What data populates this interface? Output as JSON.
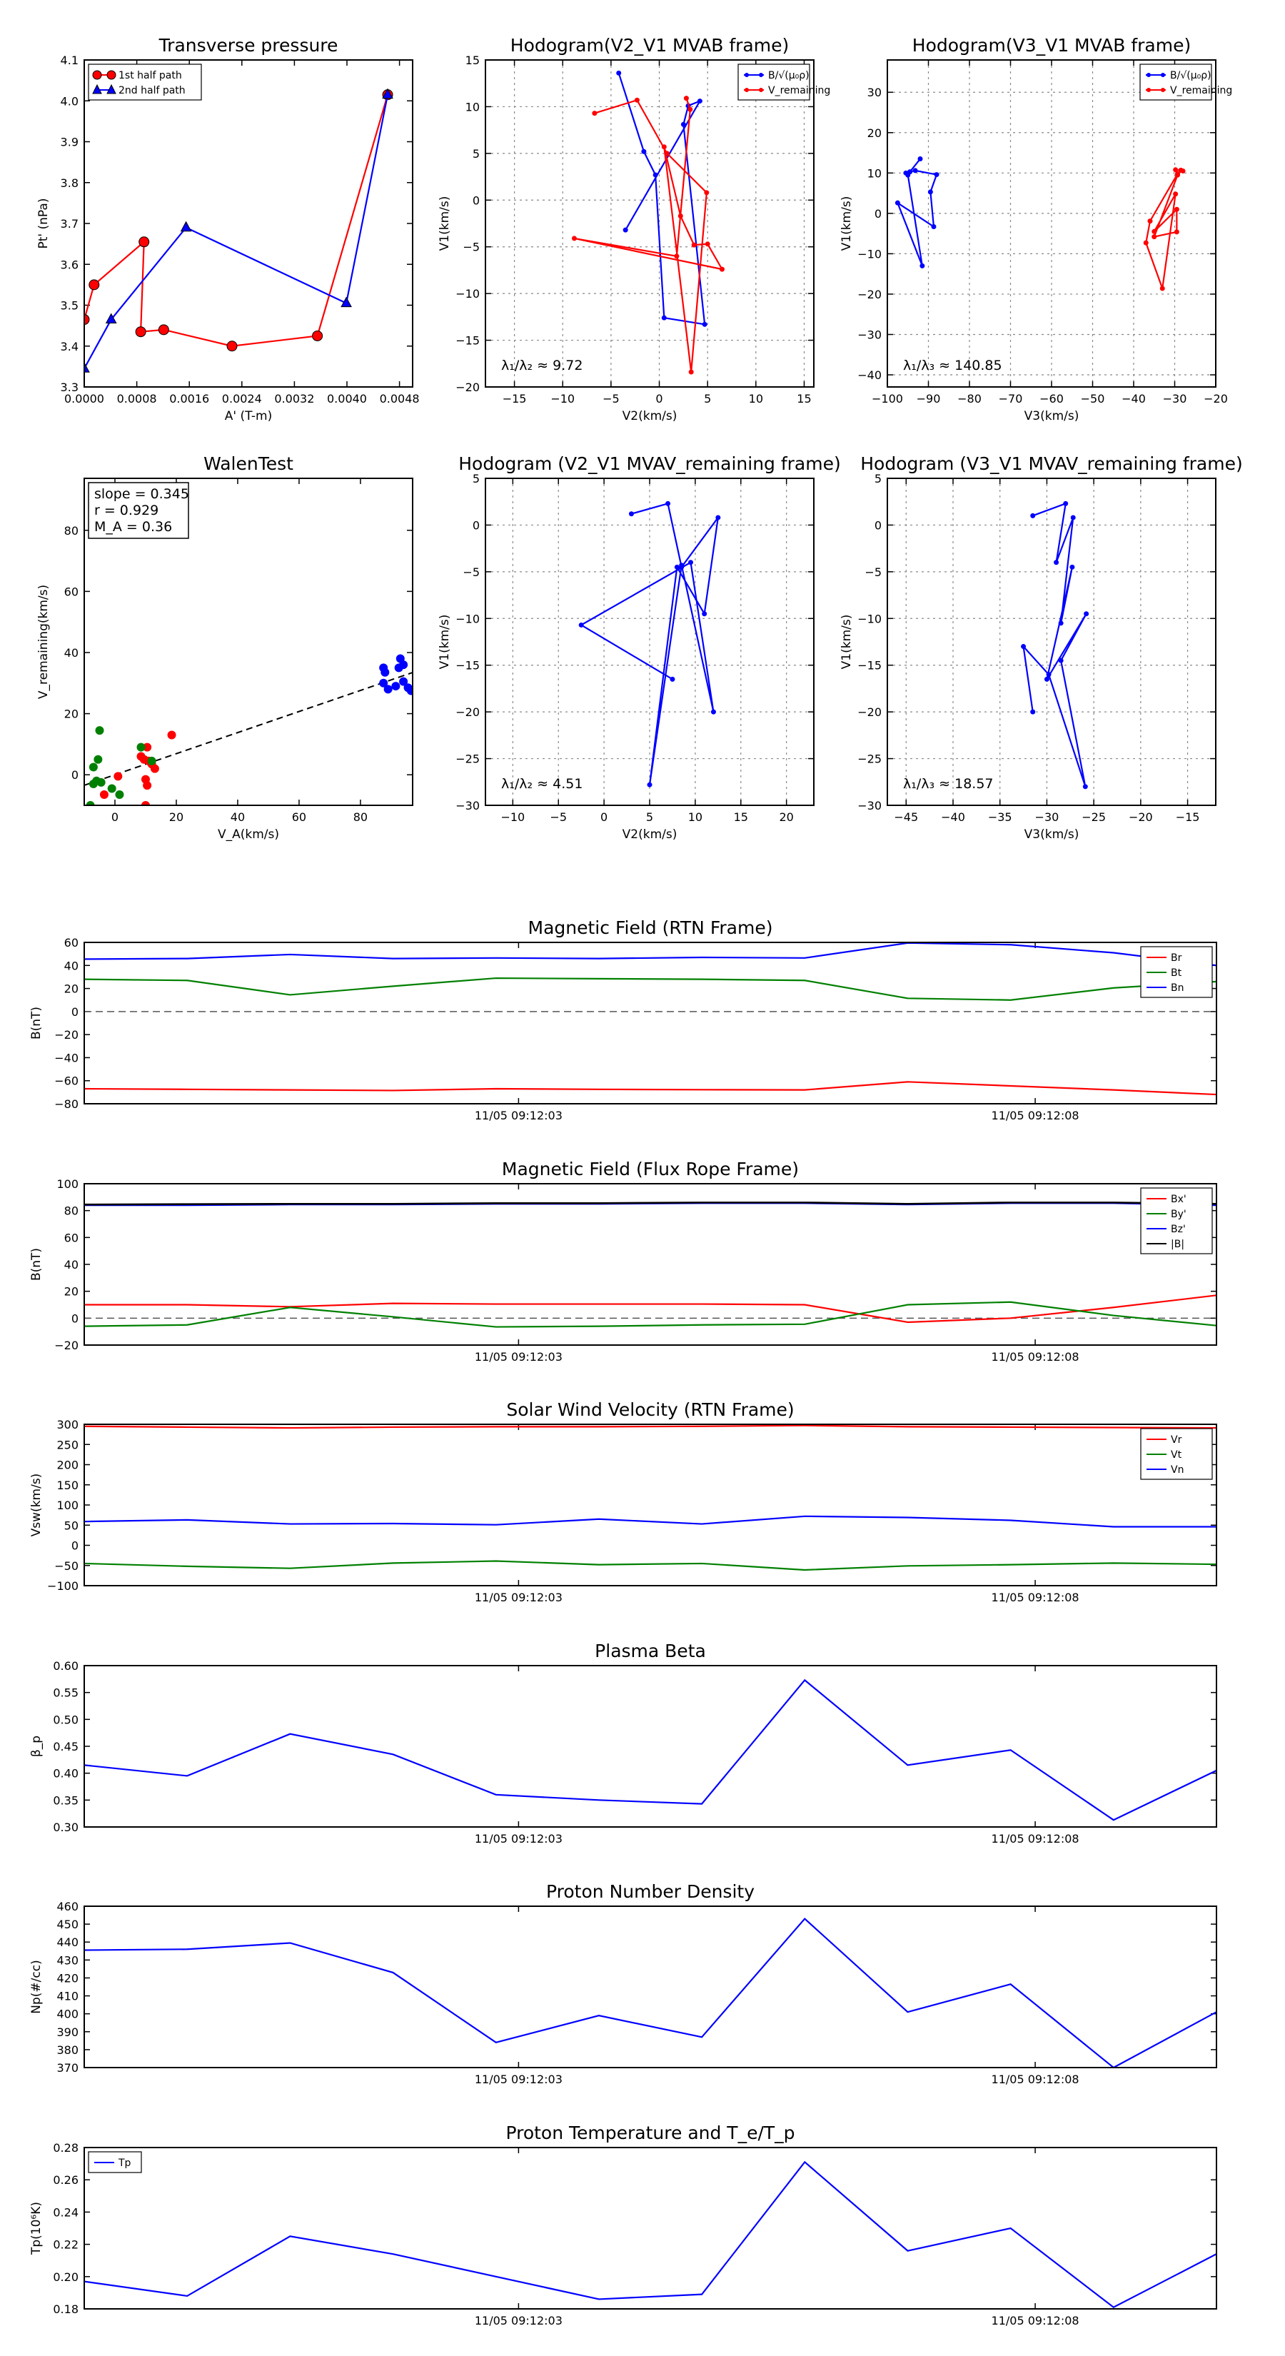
{
  "colors": {
    "red": "#ff0000",
    "green": "#008000",
    "blue": "#0000ff",
    "black": "#000000",
    "dash": "#555555"
  },
  "chart_data": [
    {
      "id": "tp",
      "type": "line",
      "title": "Transverse pressure",
      "xlabel": "A' (T-m)",
      "ylabel": "Pt' (nPa)",
      "xlim": [
        0,
        0.005
      ],
      "ylim": [
        3.3,
        4.1
      ],
      "xticks": [
        0,
        0.0008,
        0.0016,
        0.0024,
        0.0032,
        0.004,
        0.0048
      ],
      "xtick_labels": [
        "0.0000",
        "0.0008",
        "0.0016",
        "0.0024",
        "0.0032",
        "0.0040",
        "0.0048"
      ],
      "yticks": [
        3.3,
        3.4,
        3.5,
        3.6,
        3.7,
        3.8,
        3.9,
        4.0,
        4.1
      ],
      "ytick_labels": [
        "3.3",
        "3.4",
        "3.5",
        "3.6",
        "3.7",
        "3.8",
        "3.9",
        "4.0",
        "4.1"
      ],
      "grid": false,
      "legend": {
        "position": "top-left",
        "entries": [
          "1st half path",
          "2nd half path"
        ]
      },
      "series": [
        {
          "name": "1st half path",
          "color": "red",
          "marker": "circle",
          "x": [
            0.00462,
            0.00355,
            0.00225,
            0.00121,
            0.00086,
            0.00091,
            0.00015,
            0.0
          ],
          "y": [
            4.015,
            3.425,
            3.4,
            3.44,
            3.435,
            3.655,
            3.55,
            3.465
          ]
        },
        {
          "name": "2nd half path",
          "color": "blue",
          "marker": "triangle",
          "x": [
            0.0,
            0.00041,
            0.00155,
            0.00399,
            0.00462
          ],
          "y": [
            3.345,
            3.465,
            3.69,
            3.505,
            4.015
          ]
        }
      ]
    },
    {
      "id": "h1",
      "type": "line",
      "title": "Hodogram(V2_V1 MVAB frame)",
      "xlabel": "V2(km/s)",
      "ylabel": "V1(km/s)",
      "xlim": [
        -18,
        16
      ],
      "ylim": [
        -20,
        15
      ],
      "xticks": [
        -15,
        -10,
        -5,
        0,
        5,
        10,
        15
      ],
      "xtick_labels": [
        "−15",
        "−10",
        "−5",
        "0",
        "5",
        "10",
        "15"
      ],
      "yticks": [
        -20,
        -15,
        -10,
        -5,
        0,
        5,
        10,
        15
      ],
      "ytick_labels": [
        "−20",
        "−15",
        "−10",
        "−5",
        "0",
        "5",
        "10",
        "15"
      ],
      "grid": true,
      "annotation": "λ₁/λ₂ ≈ 9.72",
      "legend": {
        "position": "top-right",
        "entries": [
          "B/√(μ₀ρ)",
          "V_remaining"
        ]
      },
      "series": [
        {
          "name": "B/√(μ₀ρ)",
          "color": "blue",
          "marker": "dot",
          "x": [
            -4.2,
            -1.6,
            -0.4,
            0.5,
            4.7,
            2.5,
            3.0,
            4.2,
            -3.5
          ],
          "y": [
            13.6,
            5.2,
            2.7,
            -12.6,
            -13.3,
            8.1,
            10.1,
            10.6,
            -3.2
          ]
        },
        {
          "name": "V_remaining",
          "color": "red",
          "marker": "dot",
          "x": [
            -6.7,
            -2.3,
            0.8,
            4.9,
            3.3,
            0.5,
            2.2,
            3.6,
            5.0,
            6.5,
            -8.8,
            1.8,
            3.2,
            2.8
          ],
          "y": [
            9.3,
            10.7,
            5.0,
            0.8,
            -18.4,
            5.7,
            -1.7,
            -4.8,
            -4.7,
            -7.4,
            -4.1,
            -6.0,
            9.7,
            10.9
          ]
        }
      ]
    },
    {
      "id": "h2",
      "type": "line",
      "title": "Hodogram(V3_V1 MVAB frame)",
      "xlabel": "V3(km/s)",
      "ylabel": "V1(km/s)",
      "xlim": [
        -100,
        -20
      ],
      "ylim": [
        -43,
        38
      ],
      "xticks": [
        -100,
        -90,
        -80,
        -70,
        -60,
        -50,
        -40,
        -30,
        -20
      ],
      "xtick_labels": [
        "−100",
        "−90",
        "−80",
        "−70",
        "−60",
        "−50",
        "−40",
        "−30",
        "−20"
      ],
      "yticks": [
        -40,
        -30,
        -20,
        -10,
        0,
        10,
        20,
        30
      ],
      "ytick_labels": [
        "−40",
        "−30",
        "−20",
        "−10",
        "0",
        "10",
        "20",
        "30"
      ],
      "grid": true,
      "annotation": "λ₁/λ₃ ≈ 140.85",
      "legend": {
        "position": "top-right",
        "entries": [
          "B/√(μ₀ρ)",
          "V_remaining"
        ]
      },
      "series": [
        {
          "name": "B/√(μ₀ρ)",
          "color": "blue",
          "marker": "dot",
          "x": [
            -92.0,
            -94.5,
            -93.2,
            -88.0,
            -89.5,
            -88.7,
            -97.5,
            -91.5,
            -95.0,
            -95.5
          ],
          "y": [
            13.5,
            10.3,
            10.6,
            9.6,
            5.3,
            -3.3,
            2.6,
            -13.0,
            9.5,
            10.0
          ]
        },
        {
          "name": "V_remaining",
          "color": "red",
          "marker": "dot",
          "x": [
            -28.0,
            -29.8,
            -29.3,
            -35.0,
            -29.5,
            -29.5,
            -35.0,
            -29.8,
            -33.0,
            -37.0,
            -36.0,
            -29.3,
            -28.5
          ],
          "y": [
            10.5,
            10.8,
            9.5,
            -5.8,
            -4.6,
            1.0,
            -4.5,
            4.8,
            -18.6,
            -7.3,
            -1.9,
            9.8,
            10.7
          ]
        }
      ]
    },
    {
      "id": "walen",
      "type": "scatter",
      "title": "WalenTest",
      "xlabel": "V_A(km/s)",
      "ylabel": "V_remaining(km/s)",
      "xlim": [
        -10,
        97
      ],
      "ylim": [
        -10,
        97
      ],
      "xticks": [
        0,
        20,
        40,
        60,
        80
      ],
      "xtick_labels": [
        "0",
        "20",
        "40",
        "60",
        "80"
      ],
      "yticks": [
        0,
        20,
        40,
        60,
        80
      ],
      "ytick_labels": [
        "0",
        "20",
        "40",
        "60",
        "80"
      ],
      "grid": false,
      "annotation_lines": [
        "slope = 0.345",
        "r = 0.929",
        "M_A = 0.36"
      ],
      "fit": {
        "slope": 0.345,
        "x_range": [
          -10,
          97
        ]
      },
      "series": [
        {
          "name": "red",
          "color": "red",
          "x": [
            18.5,
            10.5,
            8.5,
            11.0,
            9.5,
            12.0,
            10.0,
            13.0,
            10.5,
            1.0,
            -3.5,
            10.0
          ],
          "y": [
            13.0,
            9.0,
            6.0,
            4.5,
            5.0,
            3.5,
            -1.5,
            2.0,
            -3.5,
            -0.5,
            -6.5,
            -10.0
          ]
        },
        {
          "name": "green",
          "color": "green",
          "x": [
            -5.0,
            -5.5,
            -4.5,
            8.5,
            -7.0,
            -7.0,
            -6.0,
            -1.0,
            1.5,
            -8.0,
            12.0
          ],
          "y": [
            14.5,
            5.0,
            -2.5,
            9.0,
            2.5,
            -3.0,
            -2.0,
            -4.5,
            -6.5,
            -10.0,
            4.5
          ]
        },
        {
          "name": "blue",
          "color": "blue",
          "x": [
            93.0,
            92.5,
            94.0,
            87.5,
            88.0,
            87.5,
            91.5,
            95.5,
            96.5,
            89.0,
            94.0
          ],
          "y": [
            38.0,
            35.0,
            36.0,
            35.0,
            33.5,
            30.0,
            29.0,
            28.5,
            27.5,
            28.0,
            30.5
          ]
        }
      ]
    },
    {
      "id": "h3",
      "type": "line",
      "title": "Hodogram (V2_V1 MVAV_remaining frame)",
      "xlabel": "V2(km/s)",
      "ylabel": "V1(km/s)",
      "xlim": [
        -13,
        23
      ],
      "ylim": [
        -30,
        5
      ],
      "xticks": [
        -10,
        -5,
        0,
        5,
        10,
        15,
        20
      ],
      "xtick_labels": [
        "−10",
        "−5",
        "0",
        "5",
        "10",
        "15",
        "20"
      ],
      "yticks": [
        -30,
        -25,
        -20,
        -15,
        -10,
        -5,
        0,
        5
      ],
      "ytick_labels": [
        "−30",
        "−25",
        "−20",
        "−15",
        "−10",
        "−5",
        "0",
        "5"
      ],
      "grid": true,
      "annotation": "λ₁/λ₂ ≈ 4.51",
      "series": [
        {
          "name": "V",
          "color": "blue",
          "marker": "dot",
          "x": [
            3.0,
            7.0,
            8.5,
            12.5,
            11.0,
            8.0,
            5.0,
            8.5,
            12.0,
            9.5,
            -2.5,
            7.5
          ],
          "y": [
            1.2,
            2.3,
            -4.5,
            0.8,
            -9.5,
            -4.5,
            -27.8,
            -4.3,
            -20.0,
            -4.0,
            -10.7,
            -16.5
          ]
        }
      ]
    },
    {
      "id": "h4",
      "type": "line",
      "title": "Hodogram (V3_V1 MVAV_remaining frame)",
      "xlabel": "V3(km/s)",
      "ylabel": "V1(km/s)",
      "xlim": [
        -47,
        -12
      ],
      "ylim": [
        -30,
        5
      ],
      "xticks": [
        -45,
        -40,
        -35,
        -30,
        -25,
        -20,
        -15
      ],
      "xtick_labels": [
        "−45",
        "−40",
        "−35",
        "−30",
        "−25",
        "−20",
        "−15"
      ],
      "yticks": [
        -30,
        -25,
        -20,
        -15,
        -10,
        -5,
        0,
        5
      ],
      "ytick_labels": [
        "−30",
        "−25",
        "−20",
        "−15",
        "−10",
        "−5",
        "0",
        "5"
      ],
      "grid": true,
      "annotation": "λ₁/λ₃ ≈ 18.57",
      "series": [
        {
          "name": "V",
          "color": "blue",
          "marker": "dot",
          "x": [
            -31.5,
            -28.0,
            -29.0,
            -27.2,
            -28.5,
            -27.3,
            -30.0,
            -25.8,
            -28.5,
            -25.9,
            -29.8,
            -32.5,
            -31.5
          ],
          "y": [
            1.0,
            2.3,
            -4.0,
            0.8,
            -10.5,
            -4.5,
            -16.5,
            -9.5,
            -14.5,
            -28.0,
            -16.0,
            -13.0,
            -20.0
          ]
        }
      ]
    },
    {
      "id": "ts_b",
      "type": "line",
      "title": "Magnetic Field (RTN Frame)",
      "ylabel": "B(nT)",
      "ylim": [
        -80,
        60
      ],
      "yticks": [
        -80,
        -60,
        -40,
        -20,
        0,
        20,
        40,
        60
      ],
      "ytick_labels": [
        "−80",
        "−60",
        "−40",
        "−20",
        "0",
        "20",
        "40",
        "60"
      ],
      "xtick_labels": [
        "11/05 09:12:03",
        "11/05 09:12:08"
      ],
      "zero_line": true,
      "legend": {
        "position": "top-right",
        "entries": [
          "Br",
          "Bt",
          "Bn"
        ]
      },
      "series": [
        {
          "name": "Br",
          "color": "red",
          "values": [
            -67,
            -67.5,
            -68,
            -68.5,
            -67,
            -67.5,
            -67.8,
            -68,
            -61,
            -64.5,
            -68,
            -72
          ]
        },
        {
          "name": "Bt",
          "color": "green",
          "values": [
            28,
            27,
            14.5,
            22,
            29,
            28.5,
            28,
            27,
            11.5,
            10,
            20.5,
            26
          ]
        },
        {
          "name": "Bn",
          "color": "blue",
          "values": [
            45.5,
            46,
            49.5,
            46,
            46.5,
            46,
            47,
            46.5,
            59.5,
            58,
            51,
            40
          ]
        }
      ]
    },
    {
      "id": "ts_bflux",
      "type": "line",
      "title": "Magnetic Field (Flux Rope Frame)",
      "ylabel": "B(nT)",
      "ylim": [
        -20,
        100
      ],
      "yticks": [
        -20,
        0,
        20,
        40,
        60,
        80,
        100
      ],
      "ytick_labels": [
        "−20",
        "0",
        "20",
        "40",
        "60",
        "80",
        "100"
      ],
      "xtick_labels": [
        "11/05 09:12:03",
        "11/05 09:12:08"
      ],
      "zero_line": true,
      "legend": {
        "position": "top-right",
        "entries": [
          "Bx'",
          "By'",
          "Bz'",
          "|B|"
        ]
      },
      "series": [
        {
          "name": "Bx'",
          "color": "red",
          "values": [
            10,
            10,
            8.5,
            11,
            10.5,
            10.5,
            10.5,
            10,
            -3,
            0,
            8,
            17
          ]
        },
        {
          "name": "By'",
          "color": "green",
          "values": [
            -6,
            -5,
            8,
            1,
            -6.5,
            -6,
            -5,
            -4.5,
            10,
            12,
            2,
            -5.5
          ]
        },
        {
          "name": "Bz'",
          "color": "blue",
          "values": [
            84,
            84,
            84.5,
            84.5,
            85,
            85,
            85.5,
            85.5,
            84.5,
            85.5,
            85.5,
            84
          ]
        },
        {
          "name": "|B|",
          "color": "black",
          "values": [
            84.5,
            84.8,
            85,
            85,
            85.5,
            85.5,
            86,
            86,
            85,
            86,
            86,
            85
          ]
        }
      ]
    },
    {
      "id": "ts_v",
      "type": "line",
      "title": "Solar Wind Velocity (RTN Frame)",
      "ylabel": "Vsw(km/s)",
      "ylim": [
        -100,
        300
      ],
      "yticks": [
        -100,
        -50,
        0,
        50,
        100,
        150,
        200,
        250,
        300
      ],
      "ytick_labels": [
        "−100",
        "−50",
        "0",
        "50",
        "100",
        "150",
        "200",
        "250",
        "300"
      ],
      "xtick_labels": [
        "11/05 09:12:03",
        "11/05 09:12:08"
      ],
      "legend": {
        "position": "top-right",
        "entries": [
          "Vr",
          "Vt",
          "Vn"
        ]
      },
      "series": [
        {
          "name": "Vr",
          "color": "red",
          "values": [
            295,
            293,
            291,
            293,
            294,
            294,
            295,
            297,
            294,
            293,
            292,
            291
          ]
        },
        {
          "name": "Vt",
          "color": "green",
          "values": [
            -45,
            -52,
            -57,
            -44,
            -39,
            -48,
            -45,
            -61,
            -51,
            -48,
            -44,
            -47
          ]
        },
        {
          "name": "Vn",
          "color": "blue",
          "values": [
            59,
            63,
            53,
            54,
            51,
            65,
            53,
            72,
            69,
            62,
            46,
            46
          ]
        }
      ]
    },
    {
      "id": "ts_beta",
      "type": "line",
      "title": "Plasma Beta",
      "ylabel": "β_p",
      "ylim": [
        0.3,
        0.6
      ],
      "yticks": [
        0.3,
        0.35,
        0.4,
        0.45,
        0.5,
        0.55,
        0.6
      ],
      "ytick_labels": [
        "0.30",
        "0.35",
        "0.40",
        "0.45",
        "0.50",
        "0.55",
        "0.60"
      ],
      "xtick_labels": [
        "11/05 09:12:03",
        "11/05 09:12:08"
      ],
      "series": [
        {
          "name": "beta",
          "color": "blue",
          "values": [
            0.415,
            0.395,
            0.473,
            0.435,
            0.36,
            0.35,
            0.343,
            0.573,
            0.415,
            0.443,
            0.313,
            0.405
          ]
        }
      ]
    },
    {
      "id": "ts_np",
      "type": "line",
      "title": "Proton Number Density",
      "ylabel": "Np(#/cc)",
      "ylim": [
        370,
        460
      ],
      "yticks": [
        370,
        380,
        390,
        400,
        410,
        420,
        430,
        440,
        450,
        460
      ],
      "ytick_labels": [
        "370",
        "380",
        "390",
        "400",
        "410",
        "420",
        "430",
        "440",
        "450",
        "460"
      ],
      "xtick_labels": [
        "11/05 09:12:03",
        "11/05 09:12:08"
      ],
      "series": [
        {
          "name": "Np",
          "color": "blue",
          "values": [
            435.5,
            436,
            439.5,
            423,
            384,
            399,
            387,
            453,
            401,
            416.5,
            370,
            401
          ]
        }
      ]
    },
    {
      "id": "ts_tp",
      "type": "line",
      "title": "Proton Temperature and T_e/T_p",
      "ylabel": "Tp(10⁶K)",
      "ylim": [
        0.18,
        0.28
      ],
      "yticks": [
        0.18,
        0.2,
        0.22,
        0.24,
        0.26,
        0.28
      ],
      "ytick_labels": [
        "0.18",
        "0.20",
        "0.22",
        "0.24",
        "0.26",
        "0.28"
      ],
      "xtick_labels": [
        "11/05 09:12:03",
        "11/05 09:12:08"
      ],
      "legend": {
        "position": "top-left",
        "entries": [
          "Tp"
        ]
      },
      "series": [
        {
          "name": "Tp",
          "color": "blue",
          "values": [
            0.197,
            0.188,
            0.225,
            0.214,
            0.2,
            0.186,
            0.189,
            0.271,
            0.216,
            0.23,
            0.181,
            0.214
          ]
        }
      ]
    }
  ]
}
